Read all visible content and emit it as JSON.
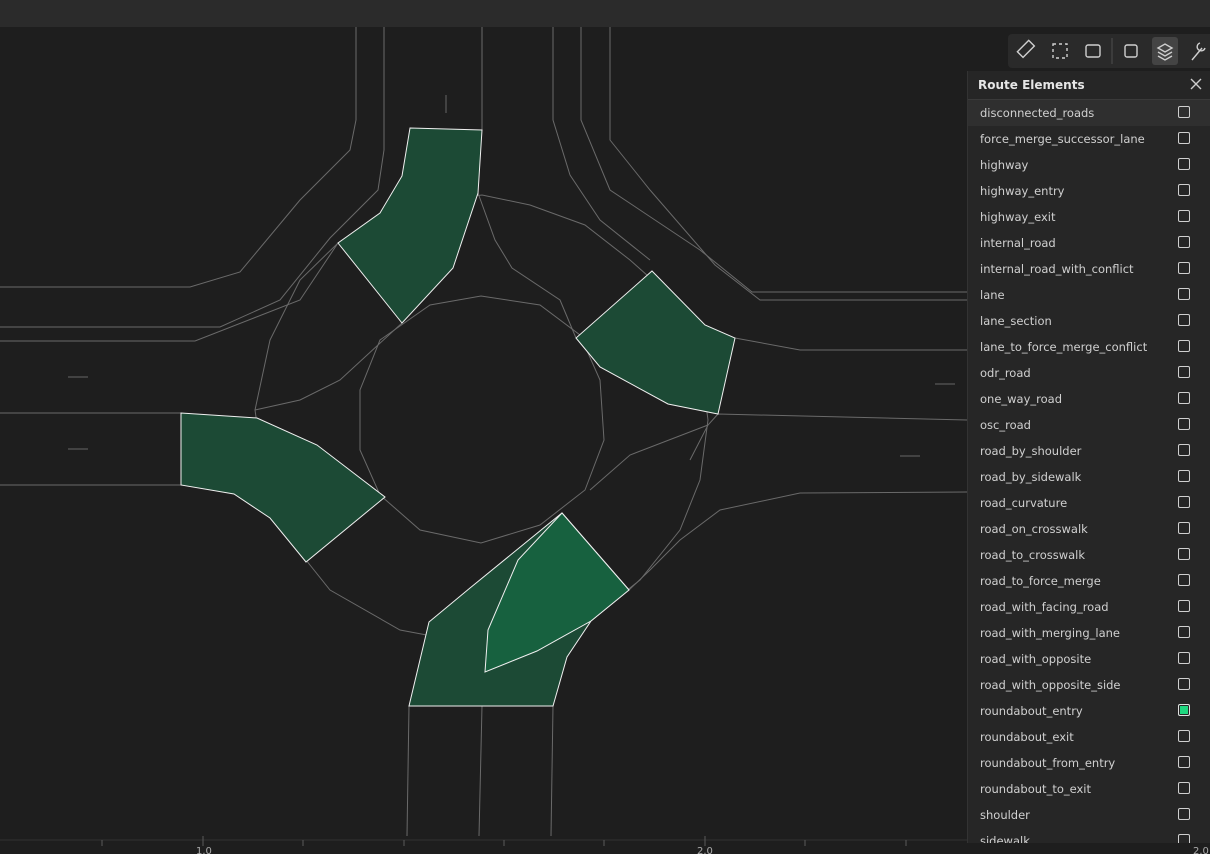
{
  "panel": {
    "title": "Route Elements",
    "items": [
      {
        "label": "disconnected_roads",
        "checked": false
      },
      {
        "label": "force_merge_successor_lane",
        "checked": false
      },
      {
        "label": "highway",
        "checked": false
      },
      {
        "label": "highway_entry",
        "checked": false
      },
      {
        "label": "highway_exit",
        "checked": false
      },
      {
        "label": "internal_road",
        "checked": false
      },
      {
        "label": "internal_road_with_conflict",
        "checked": false
      },
      {
        "label": "lane",
        "checked": false
      },
      {
        "label": "lane_section",
        "checked": false
      },
      {
        "label": "lane_to_force_merge_conflict",
        "checked": false
      },
      {
        "label": "odr_road",
        "checked": false
      },
      {
        "label": "one_way_road",
        "checked": false
      },
      {
        "label": "osc_road",
        "checked": false
      },
      {
        "label": "road_by_shoulder",
        "checked": false
      },
      {
        "label": "road_by_sidewalk",
        "checked": false
      },
      {
        "label": "road_curvature",
        "checked": false
      },
      {
        "label": "road_on_crosswalk",
        "checked": false
      },
      {
        "label": "road_to_crosswalk",
        "checked": false
      },
      {
        "label": "road_to_force_merge",
        "checked": false
      },
      {
        "label": "road_with_facing_road",
        "checked": false
      },
      {
        "label": "road_with_merging_lane",
        "checked": false
      },
      {
        "label": "road_with_opposite",
        "checked": false
      },
      {
        "label": "road_with_opposite_side",
        "checked": false
      },
      {
        "label": "roundabout_entry",
        "checked": true
      },
      {
        "label": "roundabout_exit",
        "checked": false
      },
      {
        "label": "roundabout_from_entry",
        "checked": false
      },
      {
        "label": "roundabout_to_exit",
        "checked": false
      },
      {
        "label": "shoulder",
        "checked": false
      },
      {
        "label": "sidewalk",
        "checked": false
      }
    ]
  },
  "scale": {
    "labels": [
      "1.0",
      "2.0",
      "2.0"
    ]
  }
}
